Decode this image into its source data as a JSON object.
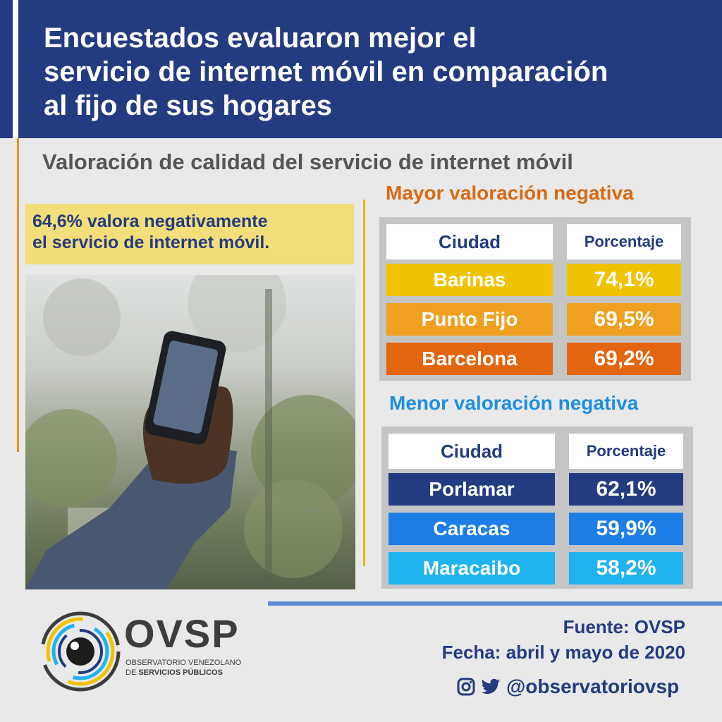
{
  "header": {
    "title_lines": [
      "Encuestados evaluaron mejor el",
      "servicio de internet móvil en comparación",
      "al fijo de sus hogares"
    ]
  },
  "subtitle": "Valoración de calidad del servicio de internet móvil",
  "callout": {
    "lines": [
      "64,6% valora negativamente",
      "el servicio de internet móvil."
    ]
  },
  "mayor": {
    "title": "Mayor valoración negativa",
    "title_color": "#d86a12",
    "col_city": "Ciudad",
    "col_pct": "Porcentaje",
    "rows": [
      {
        "city": "Barinas",
        "pct": "74,1%",
        "color": "#f0c200"
      },
      {
        "city": "Punto Fijo",
        "pct": "69,5%",
        "color": "#f0a020"
      },
      {
        "city": "Barcelona",
        "pct": "69,2%",
        "color": "#e3650f"
      }
    ]
  },
  "menor": {
    "title": "Menor valoración negativa",
    "title_color": "#1e8fe0",
    "col_city": "Ciudad",
    "col_pct": "Porcentaje",
    "rows": [
      {
        "city": "Porlamar",
        "pct": "62,1%",
        "color": "#233b80"
      },
      {
        "city": "Caracas",
        "pct": "59,9%",
        "color": "#1c7ee6"
      },
      {
        "city": "Maracaibo",
        "pct": "58,2%",
        "color": "#1fb3f0"
      }
    ]
  },
  "logo": {
    "brand": "OVSP",
    "sub1": "OBSERVATORIO VENEZOLANO",
    "sub2_prefix": "DE ",
    "sub2_bold": "SERVICIOS PÚBLICOS"
  },
  "footer": {
    "source": "Fuente: OVSP",
    "date": "Fecha: abril y mayo de 2020",
    "handle": "@observatoriovsp",
    "icons": [
      "instagram-icon",
      "twitter-icon"
    ]
  }
}
